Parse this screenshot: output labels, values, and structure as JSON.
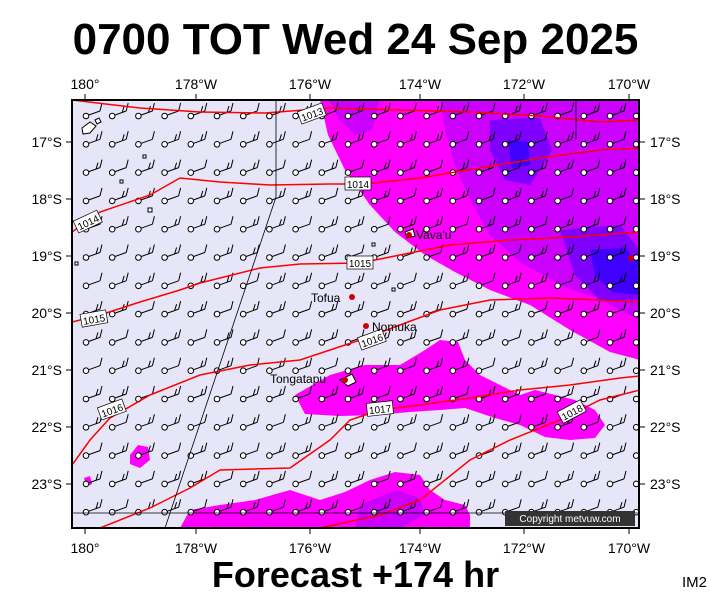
{
  "title": "0700 TOT Wed 24 Sep 2025",
  "footer": "Forecast +174 hr",
  "corner_label": "IM2",
  "copyright": "Copyright metvuw.com",
  "lon_ticks": [
    "180°",
    "178°W",
    "176°W",
    "174°W",
    "172°W",
    "170°W"
  ],
  "lat_ticks": [
    "17°S",
    "18°S",
    "19°S",
    "20°S",
    "21°S",
    "22°S",
    "23°S"
  ],
  "places": [
    "Vava'u",
    "Tofua",
    "Nomuka",
    "Tongatapu"
  ],
  "isobars": [
    "1013",
    "1014",
    "1014",
    "1015",
    "1015",
    "1016",
    "1016",
    "1017",
    "1018"
  ],
  "colors": {
    "map_background": "#e6e6f8",
    "isobar": "#ff0000",
    "rain_light": "#ff00ff",
    "rain_medium": "#cc00ff",
    "rain_heavy": "#7f00ff",
    "rain_extreme": "#3f00ff",
    "place_marker": "#cc0000"
  }
}
